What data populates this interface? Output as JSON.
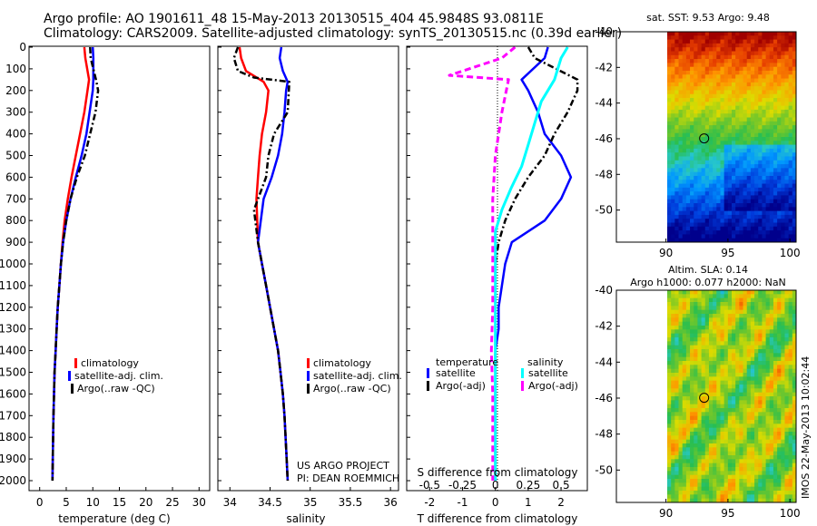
{
  "title_line1": "Argo profile: AO 1901611_48 15-May-2013 20130515_404 45.9848S 93.0811E",
  "title_line2": "Climatology: CARS2009. Satellite-adjusted climatology: synTS_20130515.nc (0.39d earlier)",
  "colors": {
    "clim": "#ff0000",
    "sat": "#0000ff",
    "argo": "#000000",
    "sat_s": "#00ffff",
    "argo_s": "#ff00ff"
  },
  "depth_ticks": [
    "0",
    "100",
    "200",
    "300",
    "400",
    "500",
    "600",
    "700",
    "800",
    "900",
    "1000",
    "1100",
    "1200",
    "1300",
    "1400",
    "1500",
    "1600",
    "1700",
    "1800",
    "1900",
    "2000"
  ],
  "temp_panel": {
    "xlabel": "temperature (deg C)",
    "xticks": [
      "0",
      "5",
      "10",
      "15",
      "20",
      "25",
      "30"
    ],
    "legend": [
      "climatology",
      "satellite-adj. clim.",
      "Argo(..raw -QC)"
    ]
  },
  "sal_panel": {
    "xlabel": "salinity",
    "xticks": [
      "34",
      "34.5",
      "35",
      "35.5",
      "36"
    ],
    "legend": [
      "climatology",
      "satellite-adj. clim.",
      "Argo(..raw -QC)"
    ],
    "credit1": "US ARGO PROJECT",
    "credit2": "PI: DEAN ROEMMICH"
  },
  "diff_panel": {
    "xlabel": "T difference from climatology",
    "xticks": [
      "-2",
      "-1",
      "0",
      "1",
      "2"
    ],
    "s_label": "S difference from climatology",
    "s_ticks": [
      "-0.5",
      "-0.25",
      "0",
      "0.25",
      "0.5"
    ],
    "legend_t_title": "temperature",
    "legend_s_title": "salinity",
    "legend_t": [
      "satellite",
      "Argo(-adj)"
    ],
    "legend_s": [
      "satellite",
      "Argo(-adj)"
    ]
  },
  "map_sst": {
    "title": "sat. SST: 9.53 Argo: 9.48",
    "yticks": [
      "-40",
      "-42",
      "-44",
      "-46",
      "-48",
      "-50"
    ],
    "xticks": [
      "90",
      "95",
      "100"
    ]
  },
  "map_sla": {
    "title1": "Altim. SLA: 0.14",
    "title2": "Argo h1000: 0.077 h2000: NaN",
    "yticks": [
      "-40",
      "-42",
      "-44",
      "-46",
      "-48",
      "-50"
    ],
    "xticks": [
      "90",
      "95",
      "100"
    ]
  },
  "side_label": "IMOS 22-May-2013 10:02:44",
  "chart_data": [
    {
      "type": "line",
      "xlabel": "temperature (deg C)",
      "xlim": [
        -2,
        32
      ],
      "ylim": [
        2050,
        0
      ],
      "series": [
        {
          "name": "climatology",
          "x": [
            8.4,
            8.6,
            9.3,
            9.0,
            8.4,
            7.6,
            6.8,
            6.0,
            5.3,
            4.7,
            4.3,
            4.0,
            3.7,
            3.4,
            3.2,
            3.0,
            2.8,
            2.7,
            2.6,
            2.5,
            2.4
          ],
          "y": [
            0,
            50,
            150,
            200,
            300,
            400,
            500,
            600,
            700,
            800,
            900,
            1000,
            1100,
            1200,
            1300,
            1400,
            1500,
            1600,
            1700,
            1850,
            2000
          ]
        },
        {
          "name": "satellite-adj. clim.",
          "x": [
            10.0,
            10.1,
            10.1,
            10.0,
            9.4,
            8.8,
            7.9,
            6.8,
            5.8,
            5.0,
            4.4,
            4.0,
            3.7,
            3.4,
            3.2,
            3.0,
            2.8,
            2.7,
            2.6,
            2.5,
            2.4
          ],
          "y": [
            0,
            50,
            150,
            200,
            300,
            400,
            500,
            600,
            700,
            800,
            900,
            1000,
            1100,
            1200,
            1300,
            1400,
            1500,
            1600,
            1700,
            1850,
            2000
          ]
        },
        {
          "name": "Argo(..raw -QC)",
          "x": [
            9.5,
            9.6,
            10.6,
            11.0,
            10.5,
            9.5,
            8.5,
            7.0,
            5.8,
            5.0,
            4.4,
            4.0,
            3.7,
            3.4,
            3.2,
            3.0,
            2.8,
            2.7,
            2.6,
            2.5,
            2.4
          ],
          "y": [
            0,
            50,
            150,
            200,
            300,
            400,
            500,
            600,
            700,
            800,
            900,
            1000,
            1100,
            1200,
            1300,
            1400,
            1500,
            1600,
            1700,
            1850,
            2000
          ]
        }
      ]
    },
    {
      "type": "line",
      "xlabel": "salinity",
      "xlim": [
        33.85,
        36.1
      ],
      "ylim": [
        2050,
        0
      ],
      "series": [
        {
          "name": "climatology",
          "x": [
            34.12,
            34.14,
            34.2,
            34.42,
            34.48,
            34.45,
            34.4,
            34.37,
            34.35,
            34.33,
            34.35,
            34.4,
            34.45,
            34.5,
            34.55,
            34.6,
            34.63,
            34.66,
            34.68,
            34.7,
            34.72
          ],
          "y": [
            0,
            50,
            110,
            160,
            200,
            300,
            400,
            500,
            600,
            700,
            900,
            1000,
            1100,
            1200,
            1300,
            1400,
            1500,
            1600,
            1700,
            1850,
            2000
          ]
        },
        {
          "name": "satellite-adj. clim.",
          "x": [
            34.64,
            34.62,
            34.66,
            34.72,
            34.7,
            34.68,
            34.65,
            34.6,
            34.52,
            34.42,
            34.35,
            34.4,
            34.45,
            34.5,
            34.55,
            34.6,
            34.63,
            34.66,
            34.68,
            34.7,
            34.72
          ],
          "y": [
            0,
            50,
            110,
            160,
            200,
            300,
            400,
            500,
            600,
            700,
            900,
            1000,
            1100,
            1200,
            1300,
            1400,
            1500,
            1600,
            1700,
            1850,
            2000
          ]
        },
        {
          "name": "Argo(..raw -QC)",
          "x": [
            34.1,
            34.05,
            34.1,
            34.3,
            34.74,
            34.72,
            34.55,
            34.48,
            34.45,
            34.3,
            34.35,
            34.4,
            34.45,
            34.5,
            34.55,
            34.6,
            34.63,
            34.66,
            34.68,
            34.7,
            34.72
          ],
          "y": [
            0,
            50,
            110,
            140,
            160,
            300,
            400,
            500,
            600,
            750,
            900,
            1000,
            1100,
            1200,
            1300,
            1400,
            1500,
            1600,
            1700,
            1850,
            2000
          ]
        }
      ]
    },
    {
      "type": "line",
      "xlabel": "T difference from climatology",
      "x2label": "S difference from climatology",
      "xlim": [
        -2.7,
        2.8
      ],
      "ylim": [
        2050,
        0
      ],
      "series": [
        {
          "name": "temperature satellite",
          "x": [
            1.6,
            1.5,
            0.8,
            1.0,
            1.3,
            1.5,
            2.0,
            2.3,
            2.0,
            1.5,
            0.5,
            0.3,
            0.2,
            0.1,
            0.1,
            0.0,
            0.0,
            0.0,
            0.0,
            0.0,
            0.0
          ],
          "y": [
            0,
            50,
            150,
            200,
            300,
            400,
            500,
            600,
            700,
            800,
            900,
            1000,
            1100,
            1200,
            1300,
            1400,
            1500,
            1600,
            1700,
            1850,
            2000
          ]
        },
        {
          "name": "temperature Argo(-adj)",
          "x": [
            1.0,
            1.2,
            2.5,
            2.5,
            2.2,
            1.8,
            1.5,
            1.0,
            0.6,
            0.3,
            0.1,
            0.0,
            0.0,
            0.0,
            0.0,
            0.0,
            0.0,
            0.0,
            0.0,
            0.0,
            0.0
          ],
          "y": [
            0,
            50,
            150,
            200,
            300,
            400,
            500,
            600,
            700,
            800,
            900,
            1000,
            1100,
            1200,
            1300,
            1400,
            1500,
            1600,
            1700,
            1850,
            2000
          ]
        },
        {
          "name": "salinity satellite",
          "x": [
            0.55,
            0.5,
            0.45,
            0.35,
            0.3,
            0.25,
            0.2,
            0.12,
            0.05,
            0.0,
            0.0,
            0.0,
            0.0,
            0.0,
            0.0,
            0.0,
            0.0
          ],
          "y": [
            0,
            50,
            150,
            250,
            350,
            450,
            550,
            650,
            750,
            850,
            1000,
            1200,
            1400,
            1600,
            1800,
            1900,
            2000
          ]
        },
        {
          "name": "salinity Argo(-adj)",
          "x": [
            0.15,
            0.05,
            -0.35,
            0.1,
            0.05,
            0.0,
            -0.02,
            -0.02,
            -0.02,
            -0.02,
            -0.03,
            -0.02,
            -0.02,
            -0.02,
            -0.02
          ],
          "y": [
            0,
            50,
            130,
            150,
            300,
            500,
            700,
            900,
            1000,
            1200,
            1400,
            1600,
            1800,
            1900,
            2000
          ]
        }
      ]
    },
    {
      "type": "heatmap",
      "title": "sat. SST: 9.53 Argo: 9.48",
      "xlim": [
        86,
        100.5
      ],
      "ylim": [
        -51.8,
        -40
      ],
      "marker": {
        "lon": 93.08,
        "lat": -45.98
      }
    },
    {
      "type": "heatmap",
      "title": "Altim. SLA: 0.14",
      "xlim": [
        86,
        100.5
      ],
      "ylim": [
        -51.8,
        -40
      ],
      "marker": {
        "lon": 93.08,
        "lat": -45.98
      }
    }
  ]
}
